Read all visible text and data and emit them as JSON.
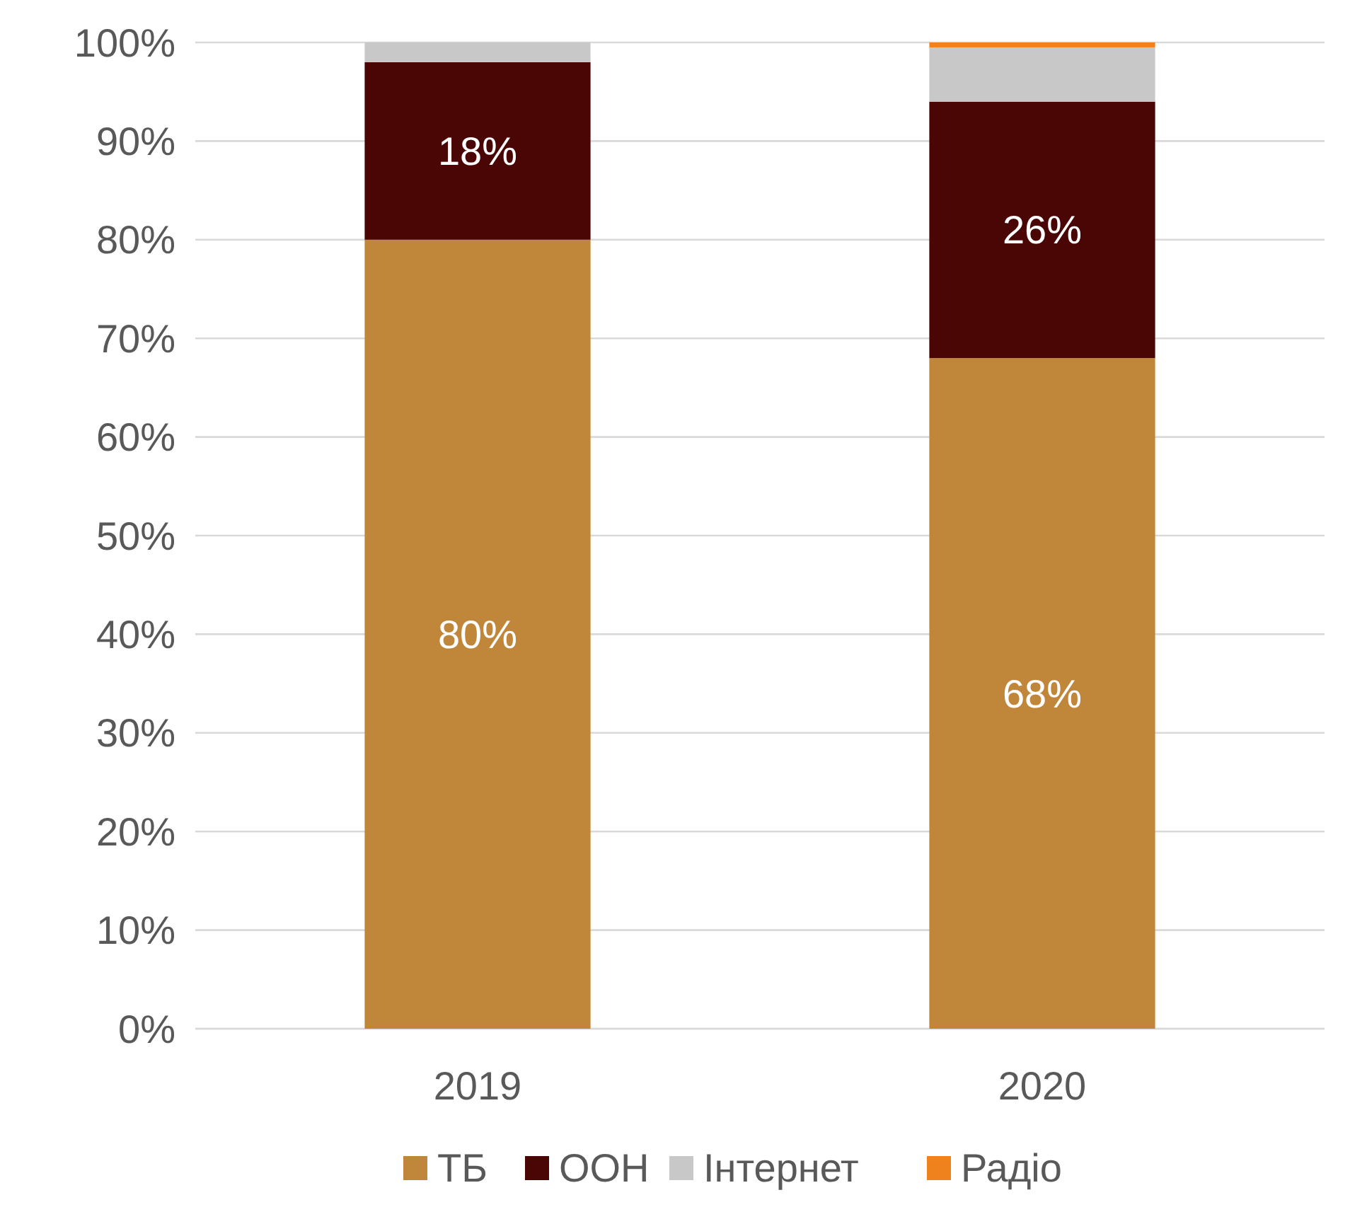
{
  "chart_data": {
    "type": "bar",
    "stacked": true,
    "categories": [
      "2019",
      "2020"
    ],
    "series": [
      {
        "name": "ТБ",
        "color": "#c0873a",
        "values": [
          80,
          68
        ],
        "value_labels": [
          "80%",
          "68%"
        ]
      },
      {
        "name": "ООН",
        "color": "#4a0505",
        "values": [
          18,
          26
        ],
        "value_labels": [
          "18%",
          "26%"
        ]
      },
      {
        "name": "Інтернет",
        "color": "#c8c8c8",
        "values": [
          2,
          5.5
        ]
      },
      {
        "name": "Радіо",
        "color": "#f0821e",
        "values": [
          0,
          0.5
        ]
      }
    ],
    "ylim": [
      0,
      100
    ],
    "yticks": [
      {
        "value": 0,
        "label": "0%"
      },
      {
        "value": 10,
        "label": "10%"
      },
      {
        "value": 20,
        "label": "20%"
      },
      {
        "value": 30,
        "label": "30%"
      },
      {
        "value": 40,
        "label": "40%"
      },
      {
        "value": 50,
        "label": "50%"
      },
      {
        "value": 60,
        "label": "60%"
      },
      {
        "value": 70,
        "label": "70%"
      },
      {
        "value": 80,
        "label": "80%"
      },
      {
        "value": 90,
        "label": "90%"
      },
      {
        "value": 100,
        "label": "100%"
      }
    ],
    "grid": "y",
    "legend": "bottom"
  }
}
